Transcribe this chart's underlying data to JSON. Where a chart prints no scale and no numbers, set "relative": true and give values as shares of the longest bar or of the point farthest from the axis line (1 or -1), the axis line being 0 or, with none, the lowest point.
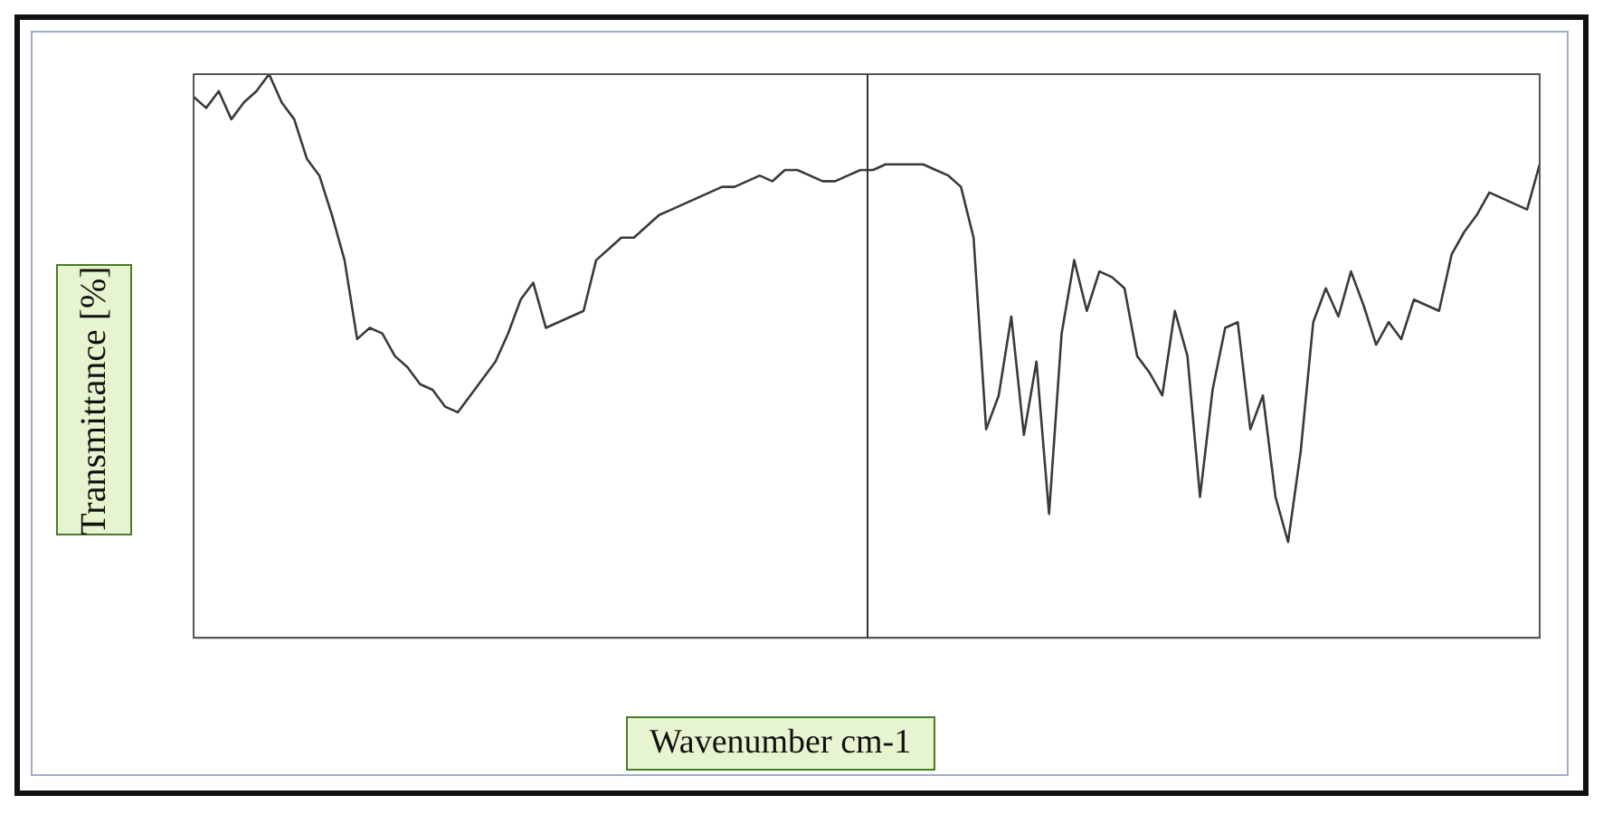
{
  "chart_data": {
    "type": "line",
    "relative": true,
    "xlabel": "Wavenumber cm-1",
    "ylabel": "Transmittance [%]",
    "color": "#3a3a3a",
    "marker": "none",
    "legend": false,
    "categories": [
      null,
      null,
      null,
      null,
      null,
      null,
      null,
      null,
      null,
      null,
      null,
      null,
      null,
      null,
      null,
      null,
      null,
      null,
      null,
      null,
      null,
      null,
      null,
      null,
      null,
      null,
      null,
      null,
      null,
      null,
      null,
      null,
      null,
      null,
      null,
      null,
      null,
      null,
      null,
      null,
      null,
      null,
      null,
      null,
      null,
      null,
      null,
      null,
      null,
      null,
      null,
      null,
      null,
      null,
      null,
      null,
      null,
      null,
      null,
      null,
      null,
      null,
      null,
      null,
      null,
      null,
      null,
      null,
      null,
      null,
      null,
      null,
      null,
      null,
      null,
      null,
      null,
      null,
      null,
      null,
      null,
      null,
      null,
      null,
      null,
      null,
      null,
      null,
      null,
      null,
      null,
      null,
      null,
      null,
      null,
      null,
      null,
      null,
      null,
      null,
      null,
      null,
      null,
      null,
      null,
      null,
      null,
      null
    ],
    "values": [
      0.96,
      0.94,
      0.97,
      0.92,
      0.95,
      0.97,
      1,
      0.95,
      0.92,
      0.85,
      0.82,
      0.75,
      0.67,
      0.53,
      0.55,
      0.54,
      0.5,
      0.48,
      0.45,
      0.44,
      0.41,
      0.4,
      0.43,
      0.46,
      0.49,
      0.54,
      0.6,
      0.63,
      0.55,
      0.56,
      0.57,
      0.58,
      0.67,
      0.69,
      0.71,
      0.71,
      0.73,
      0.75,
      0.76,
      0.77,
      0.78,
      0.79,
      0.8,
      0.8,
      0.81,
      0.82,
      0.81,
      0.83,
      0.83,
      0.82,
      0.81,
      0.81,
      0.82,
      0.83,
      0.83,
      0.84,
      0.84,
      0.84,
      0.84,
      0.83,
      0.82,
      0.8,
      0.71,
      0.37,
      0.43,
      0.57,
      0.36,
      0.49,
      0.22,
      0.54,
      0.67,
      0.58,
      0.65,
      0.64,
      0.62,
      0.5,
      0.47,
      0.43,
      0.58,
      0.5,
      0.25,
      0.44,
      0.55,
      0.56,
      0.37,
      0.43,
      0.25,
      0.17,
      0.33,
      0.56,
      0.62,
      0.57,
      0.65,
      0.59,
      0.52,
      0.56,
      0.53,
      0.6,
      0.59,
      0.58,
      0.68,
      0.72,
      0.75,
      0.79,
      0.78,
      0.77,
      0.76,
      0.84
    ]
  }
}
